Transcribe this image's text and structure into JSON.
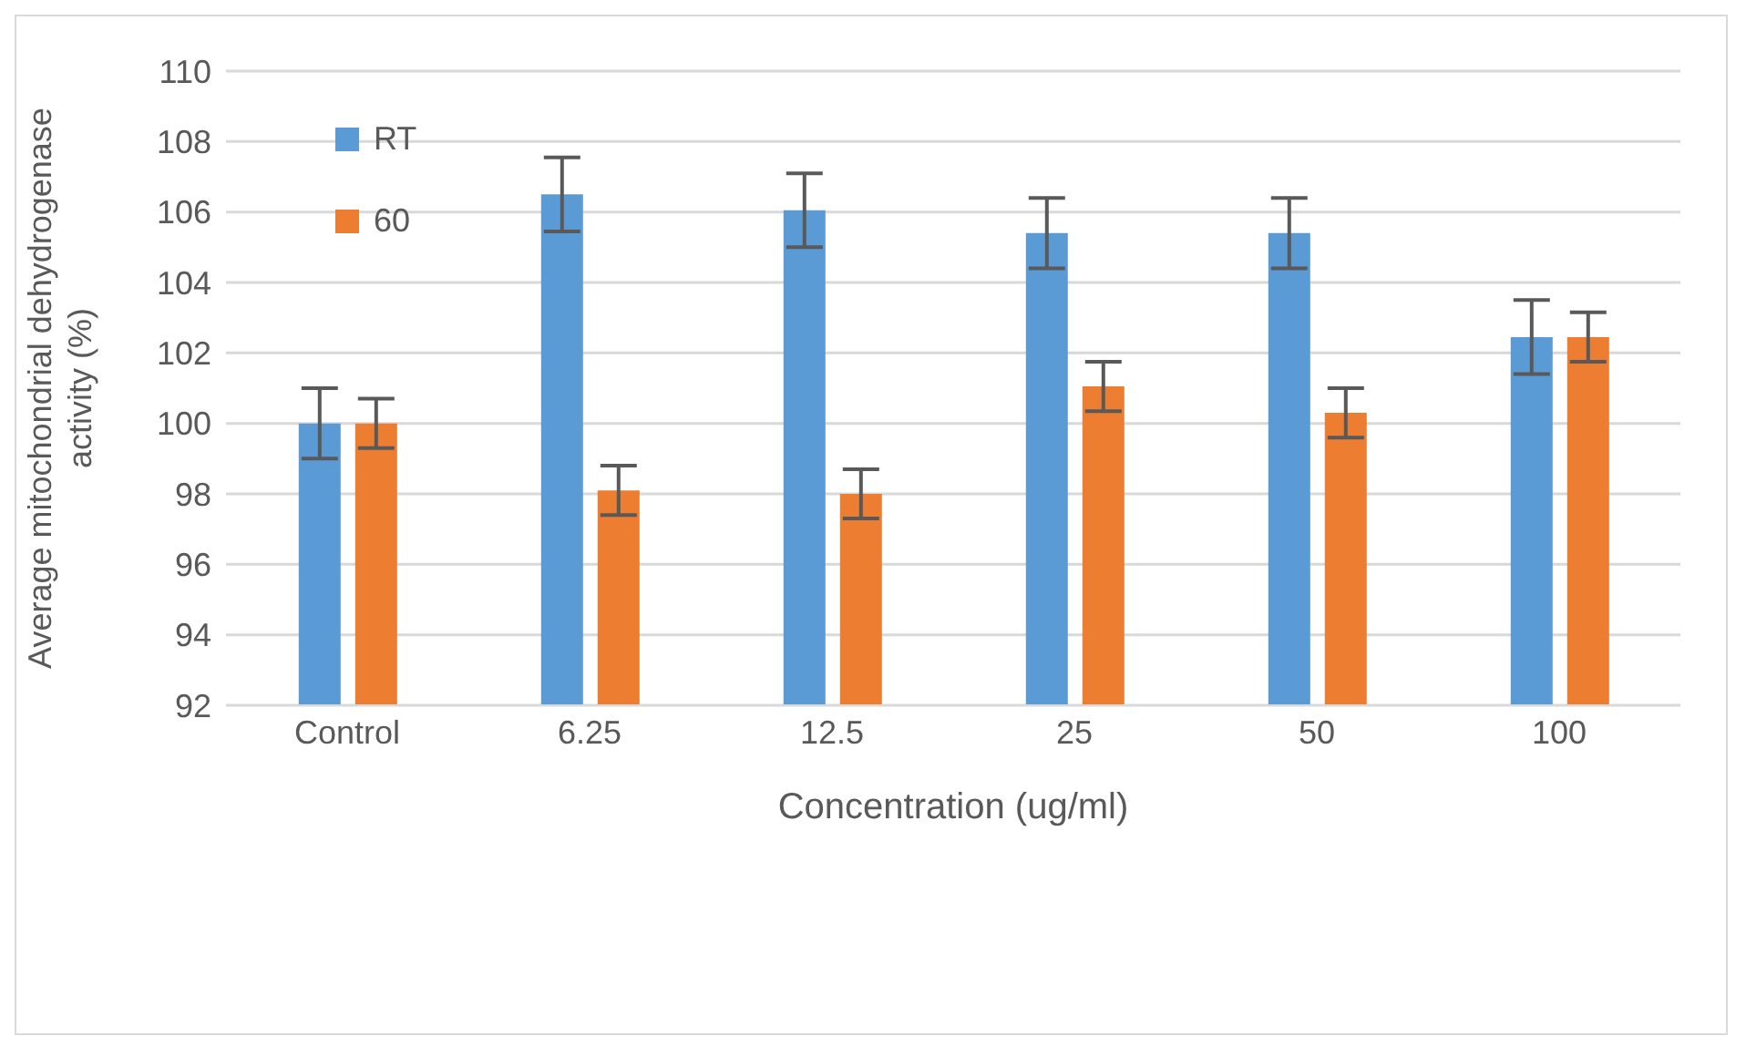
{
  "chart_data": {
    "type": "bar",
    "xlabel": "Concentration (ug/ml)",
    "ylabel": "Average mitochondrial dehydrogenase activity (%)",
    "categories": [
      "Control",
      "6.25",
      "12.5",
      "25",
      "50",
      "100"
    ],
    "series": [
      {
        "name": "RT",
        "color": "#5b9bd5",
        "values": [
          100,
          106.5,
          106.05,
          105.4,
          105.4,
          102.45
        ],
        "errors": [
          1.0,
          1.05,
          1.05,
          1.0,
          1.0,
          1.05
        ]
      },
      {
        "name": "60",
        "color": "#ed7d31",
        "values": [
          100,
          98.1,
          98.0,
          101.05,
          100.3,
          102.45
        ],
        "errors": [
          0.7,
          0.7,
          0.7,
          0.7,
          0.7,
          0.7
        ]
      }
    ],
    "ylim": [
      92,
      110
    ],
    "yticks": [
      92,
      94,
      96,
      98,
      100,
      102,
      104,
      106,
      108,
      110
    ],
    "grid": "y",
    "legend": "top left"
  }
}
